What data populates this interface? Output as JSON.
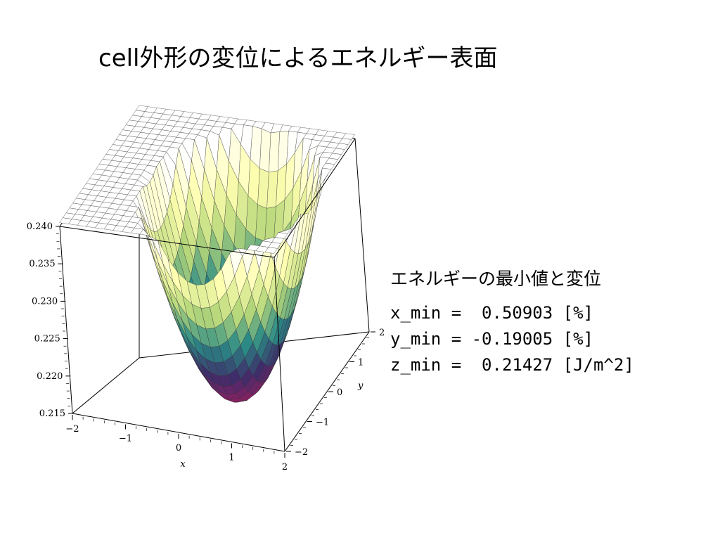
{
  "slide": {
    "title": "cell外形の変位によるエネルギー表面"
  },
  "results": {
    "heading": "エネルギーの最小値と変位",
    "lines": [
      "x_min =  0.50903 [%]",
      "y_min = -0.19005 [%]",
      "z_min =  0.21427 [J/m^2]"
    ]
  },
  "chart_data": {
    "type": "surface3d",
    "title": "",
    "xlabel": "x",
    "ylabel": "y",
    "zlabel": "",
    "xlim": [
      -2,
      2
    ],
    "ylim": [
      -2,
      2
    ],
    "zlim": [
      0.215,
      0.24
    ],
    "x_ticks": [
      "−2",
      "−1",
      "0",
      "1",
      "2"
    ],
    "y_ticks": [
      "−2",
      "−1",
      "0",
      "1",
      "2"
    ],
    "z_ticks": [
      "0.215",
      "0.220",
      "0.225",
      "0.230",
      "0.235",
      "0.240"
    ],
    "surface_minimum": {
      "x": 0.50903,
      "y": -0.19005,
      "z": 0.21427
    },
    "colormap": [
      "#8e1f63",
      "#3d2d6a",
      "#2a8a86",
      "#b6d77a",
      "#ffffb0",
      "#ffffff"
    ],
    "points": []
  }
}
